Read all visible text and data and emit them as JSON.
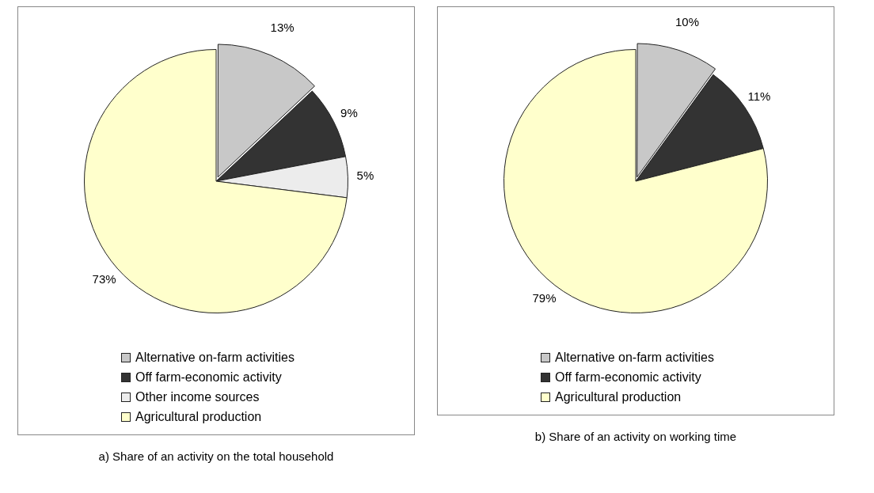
{
  "chart_data": [
    {
      "type": "pie",
      "title": "a) Share of an activity on the total household",
      "categories": [
        "Alternative on-farm activities",
        "Off farm-economic activity",
        "Other income sources",
        "Agricultural production"
      ],
      "values": [
        13,
        9,
        5,
        73
      ],
      "colors": [
        "#c8c8c8",
        "#333333",
        "#ececec",
        "#ffffcc"
      ],
      "value_labels": [
        "13%",
        "9%",
        "5%",
        "73%"
      ],
      "legend": "bottom"
    },
    {
      "type": "pie",
      "title": "b) Share of an activity on working time",
      "categories": [
        "Alternative on-farm activities",
        "Off farm-economic activity",
        "Agricultural production"
      ],
      "values": [
        10,
        11,
        79
      ],
      "colors": [
        "#c8c8c8",
        "#333333",
        "#ffffcc"
      ],
      "value_labels": [
        "10%",
        "11%",
        "79%"
      ],
      "legend": "bottom"
    }
  ]
}
